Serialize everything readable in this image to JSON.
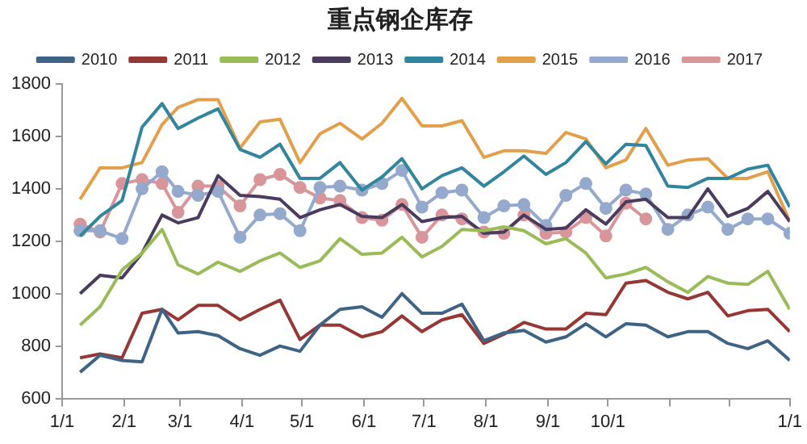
{
  "chart_data": {
    "type": "line",
    "title": "重点钢企库存",
    "x": [
      "--01-10",
      "--01-20",
      "--01-31",
      "--02-10",
      "--02-20",
      "--02-28",
      "--03-10",
      "--03-20",
      "--03-31",
      "--04-10",
      "--04-20",
      "--04-30",
      "--05-10",
      "--05-20",
      "--05-31",
      "--06-10",
      "--06-20",
      "--06-30",
      "--07-10",
      "--07-20",
      "--07-31",
      "--08-10",
      "--08-20",
      "--08-31",
      "--09-10",
      "--09-20",
      "--09-30",
      "--10-10",
      "--10-20",
      "--10-31",
      "--11-10",
      "--11-20",
      "--11-30",
      "--12-10",
      "--12-20",
      "--12-31"
    ],
    "series": [
      {
        "name": "2010",
        "color": "#3f6384",
        "marker": "none",
        "values": [
          700,
          765,
          745,
          740,
          940,
          850,
          855,
          840,
          790,
          765,
          800,
          780,
          880,
          940,
          950,
          910,
          1000,
          925,
          925,
          960,
          820,
          850,
          860,
          815,
          835,
          885,
          835,
          885,
          880,
          835,
          855,
          855,
          810,
          790,
          820,
          745
        ]
      },
      {
        "name": "2011",
        "color": "#953735",
        "marker": "none",
        "values": [
          755,
          770,
          755,
          925,
          940,
          900,
          955,
          955,
          900,
          940,
          975,
          825,
          880,
          880,
          835,
          855,
          915,
          855,
          900,
          920,
          810,
          845,
          890,
          865,
          865,
          925,
          920,
          1040,
          1050,
          1005,
          980,
          1005,
          915,
          935,
          940,
          855
        ]
      },
      {
        "name": "2012",
        "color": "#9bbb59",
        "marker": "none",
        "values": [
          880,
          950,
          1090,
          1155,
          1245,
          1110,
          1075,
          1120,
          1085,
          1125,
          1155,
          1100,
          1125,
          1210,
          1150,
          1155,
          1215,
          1140,
          1180,
          1245,
          1240,
          1255,
          1240,
          1190,
          1210,
          1155,
          1060,
          1075,
          1100,
          1045,
          1005,
          1065,
          1040,
          1035,
          1085,
          940
        ]
      },
      {
        "name": "2013",
        "color": "#4a3c5e",
        "marker": "none",
        "values": [
          1000,
          1070,
          1060,
          1155,
          1300,
          1270,
          1290,
          1450,
          1375,
          1370,
          1360,
          1290,
          1320,
          1340,
          1295,
          1290,
          1340,
          1275,
          1290,
          1295,
          1230,
          1235,
          1300,
          1245,
          1250,
          1320,
          1265,
          1350,
          1360,
          1290,
          1290,
          1400,
          1295,
          1325,
          1390,
          1275
        ]
      },
      {
        "name": "2014",
        "color": "#31859c",
        "marker": "none",
        "values": [
          1220,
          1295,
          1355,
          1635,
          1725,
          1630,
          1670,
          1705,
          1550,
          1520,
          1570,
          1440,
          1440,
          1500,
          1395,
          1445,
          1515,
          1400,
          1450,
          1480,
          1410,
          1465,
          1525,
          1455,
          1500,
          1580,
          1495,
          1570,
          1565,
          1410,
          1405,
          1440,
          1440,
          1475,
          1490,
          1330
        ]
      },
      {
        "name": "2015",
        "color": "#e2a04c",
        "marker": "none",
        "values": [
          1360,
          1480,
          1480,
          1500,
          1645,
          1710,
          1740,
          1740,
          1555,
          1655,
          1665,
          1500,
          1610,
          1650,
          1590,
          1650,
          1745,
          1640,
          1640,
          1660,
          1520,
          1545,
          1545,
          1535,
          1615,
          1590,
          1480,
          1510,
          1630,
          1490,
          1510,
          1515,
          1440,
          1440,
          1465,
          1275
        ]
      },
      {
        "name": "2016",
        "color": "#95a9cc",
        "marker": "circle",
        "values": [
          1240,
          1240,
          1210,
          1400,
          1465,
          1390,
          1375,
          1390,
          1215,
          1300,
          1305,
          1240,
          1405,
          1410,
          1395,
          1420,
          1470,
          1330,
          1385,
          1395,
          1290,
          1335,
          1340,
          1260,
          1375,
          1420,
          1325,
          1395,
          1380,
          1245,
          1300,
          1330,
          1245,
          1285,
          1285,
          1230
        ]
      },
      {
        "name": "2017",
        "color": "#d9969a",
        "marker": "circle",
        "values": [
          1265,
          1235,
          1420,
          1435,
          1420,
          1310,
          1410,
          1410,
          1335,
          1435,
          1455,
          1405,
          1365,
          1355,
          1290,
          1280,
          1340,
          1215,
          1300,
          1285,
          1235,
          1230,
          1300,
          1230,
          1235,
          1290,
          1220,
          1345,
          1285,
          null,
          null,
          null,
          null,
          null,
          null,
          null
        ]
      }
    ],
    "xlim": [
      "--01-01",
      "--12-31"
    ],
    "xticks": [
      {
        "value": "--01-01",
        "label": "1/1"
      },
      {
        "value": "--02-01",
        "label": "2/1"
      },
      {
        "value": "--03-01",
        "label": "3/1"
      },
      {
        "value": "--04-01",
        "label": "4/1"
      },
      {
        "value": "--05-01",
        "label": "5/1"
      },
      {
        "value": "--06-01",
        "label": "6/1"
      },
      {
        "value": "--07-01",
        "label": "7/1"
      },
      {
        "value": "--08-01",
        "label": "8/1"
      },
      {
        "value": "--09-01",
        "label": "9/1"
      },
      {
        "value": "--10-01",
        "label": "10/1"
      },
      {
        "value": "--11-01",
        "label": null
      },
      {
        "value": "--12-01",
        "label": null
      },
      {
        "value": "--12-31",
        "label": "1/1"
      }
    ],
    "ylim": [
      600,
      1800
    ],
    "yticks": [
      600,
      800,
      1000,
      1200,
      1400,
      1600,
      1800
    ],
    "grid": false,
    "legend": "top"
  }
}
